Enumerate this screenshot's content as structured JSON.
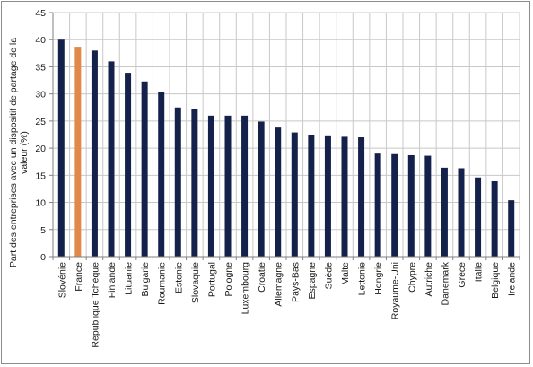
{
  "chart_data": {
    "type": "bar",
    "title": "",
    "xlabel": "",
    "ylabel": "Part des entreprises avec un dispositif de partage de la valeur  (%)",
    "ylim": [
      0,
      45
    ],
    "yticks": [
      0,
      5,
      10,
      15,
      20,
      25,
      30,
      35,
      40,
      45
    ],
    "grid": true,
    "legend": "none",
    "bar_color": "#14214a",
    "highlight_color": "#e08a4a",
    "highlight_category": "France",
    "categories": [
      "Slovénie",
      "France",
      "République Tchèque",
      "Finlande",
      "Lituanie",
      "Bulgarie",
      "Roumanie",
      "Estonie",
      "Slovaquie",
      "Portugal",
      "Pologne",
      "Luxembourg",
      "Croatie",
      "Allemagne",
      "Pays-Bas",
      "Espagne",
      "Suède",
      "Malte",
      "Lettonie",
      "Hongrie",
      "Royaume-Uni",
      "Chypre",
      "Autriche",
      "Danemark",
      "Grèce",
      "Italie",
      "Belgique",
      "Irelande"
    ],
    "values": [
      40.0,
      38.7,
      38.0,
      36.0,
      33.9,
      32.3,
      30.3,
      27.5,
      27.2,
      26.0,
      26.0,
      26.0,
      24.9,
      23.8,
      22.9,
      22.5,
      22.2,
      22.1,
      22.0,
      19.0,
      18.9,
      18.7,
      18.6,
      16.4,
      16.3,
      14.6,
      13.9,
      10.4
    ]
  }
}
